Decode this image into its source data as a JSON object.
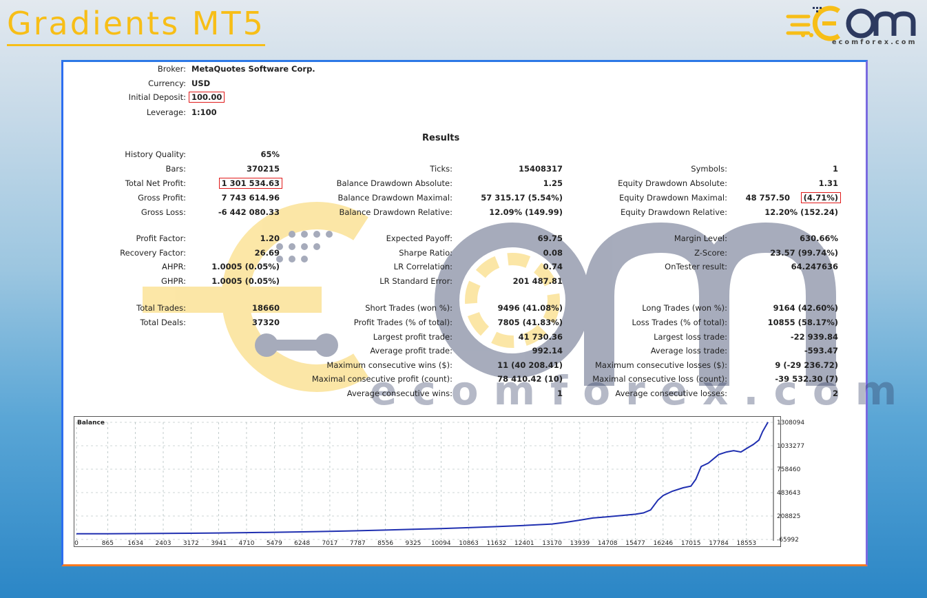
{
  "page_title": "Gradients MT5",
  "logo": {
    "brand": "ECOM",
    "site": "ecomforex.com",
    "color": "#f7be17"
  },
  "watermark": {
    "text": "ecomforex.com"
  },
  "header_info": [
    {
      "label": "Broker:",
      "value": "MetaQuotes Software Corp."
    },
    {
      "label": "Currency:",
      "value": "USD"
    },
    {
      "label": "Initial Deposit:",
      "value": "100.00"
    },
    {
      "label": "Leverage:",
      "value": "1:100"
    }
  ],
  "results_title": "Results",
  "col1": [
    {
      "label": "History Quality:",
      "value": "65%"
    },
    {
      "label": "Bars:",
      "value": "370215"
    },
    {
      "label": "Total Net Profit:",
      "value": "1 301 534.63"
    },
    {
      "label": "Gross Profit:",
      "value": "7 743 614.96"
    },
    {
      "label": "Gross Loss:",
      "value": "-6 442 080.33"
    },
    {
      "label": "Profit Factor:",
      "value": "1.20"
    },
    {
      "label": "Recovery Factor:",
      "value": "26.69"
    },
    {
      "label": "AHPR:",
      "value": "1.0005 (0.05%)"
    },
    {
      "label": "GHPR:",
      "value": "1.0005 (0.05%)"
    },
    {
      "label": "Total Trades:",
      "value": "18660"
    },
    {
      "label": "Total Deals:",
      "value": "37320"
    }
  ],
  "col2": [
    {
      "label": "Ticks:",
      "value": "15408317"
    },
    {
      "label": "Balance Drawdown Absolute:",
      "value": "1.25"
    },
    {
      "label": "Balance Drawdown Maximal:",
      "value": "57 315.17 (5.54%)"
    },
    {
      "label": "Balance Drawdown Relative:",
      "value": "12.09% (149.99)"
    },
    {
      "label": "Expected Payoff:",
      "value": "69.75"
    },
    {
      "label": "Sharpe Ratio:",
      "value": "0.08"
    },
    {
      "label": "LR Correlation:",
      "value": "0.74"
    },
    {
      "label": "LR Standard Error:",
      "value": "201 487.81"
    },
    {
      "label": "Short Trades (won %):",
      "value": "9496 (41.08%)"
    },
    {
      "label": "Profit Trades (% of total):",
      "value": "7805 (41.83%)"
    },
    {
      "label": "Largest profit trade:",
      "value": "41 730.36"
    },
    {
      "label": "Average profit trade:",
      "value": "992.14"
    },
    {
      "label": "Maximum consecutive wins ($):",
      "value": "11 (40 208.41)"
    },
    {
      "label": "Maximal consecutive profit (count):",
      "value": "78 410.42 (10)"
    },
    {
      "label": "Average consecutive wins:",
      "value": "1"
    }
  ],
  "col3": [
    {
      "label": "Symbols:",
      "value": "1"
    },
    {
      "label": "Equity Drawdown Absolute:",
      "value": "1.31"
    },
    {
      "label": "Equity Drawdown Maximal:",
      "value": "48 757.50",
      "value2": "(4.71%)"
    },
    {
      "label": "Equity Drawdown Relative:",
      "value": "12.20% (152.24)"
    },
    {
      "label": "Margin Level:",
      "value": "630.66%"
    },
    {
      "label": "Z-Score:",
      "value": "23.57 (99.74%)"
    },
    {
      "label": "OnTester result:",
      "value": "64.247636"
    },
    {
      "label": "Long Trades (won %):",
      "value": "9164 (42.60%)"
    },
    {
      "label": "Loss Trades (% of total):",
      "value": "10855 (58.17%)"
    },
    {
      "label": "Largest loss trade:",
      "value": "-22 939.84"
    },
    {
      "label": "Average loss trade:",
      "value": "-593.47"
    },
    {
      "label": "Maximum consecutive losses ($):",
      "value": "9 (-29 236.72)"
    },
    {
      "label": "Maximal consecutive loss (count):",
      "value": "-39 532.30 (7)"
    },
    {
      "label": "Average consecutive losses:",
      "value": "2"
    }
  ],
  "highlight_color": "#e01818",
  "chart_data": {
    "type": "line",
    "title": "Balance",
    "x_ticks": [
      "0",
      "865",
      "1634",
      "2403",
      "3172",
      "3941",
      "4710",
      "5479",
      "6248",
      "7017",
      "7787",
      "8556",
      "9325",
      "10094",
      "10863",
      "11632",
      "12401",
      "13170",
      "13939",
      "14708",
      "15477",
      "16246",
      "17015",
      "17784",
      "18553"
    ],
    "y_ticks": [
      "1308094",
      "1033277",
      "758460",
      "483643",
      "208825",
      "-65992"
    ],
    "ylim": [
      -65992,
      1308094
    ],
    "xlim": [
      0,
      19300
    ],
    "grid": true,
    "series": [
      {
        "color": "#1f2fb0",
        "x": [
          0,
          865,
          1634,
          2403,
          3172,
          3941,
          4710,
          5479,
          6248,
          7017,
          7787,
          8556,
          9325,
          10094,
          10863,
          11632,
          12401,
          13170,
          13550,
          13939,
          14300,
          14708,
          15100,
          15477,
          15700,
          15900,
          16100,
          16246,
          16500,
          16800,
          17015,
          17150,
          17300,
          17500,
          17784,
          18000,
          18200,
          18400,
          18553,
          18750,
          18900,
          19000,
          19150
        ],
        "values": [
          100,
          800,
          2500,
          4500,
          7000,
          10000,
          14000,
          18000,
          23000,
          29000,
          36000,
          44000,
          53000,
          62000,
          72000,
          84000,
          98000,
          115000,
          135000,
          160000,
          185000,
          200000,
          215000,
          230000,
          245000,
          280000,
          395000,
          450000,
          500000,
          540000,
          560000,
          640000,
          790000,
          830000,
          930000,
          960000,
          975000,
          960000,
          1000000,
          1050000,
          1100000,
          1200000,
          1310000
        ]
      }
    ]
  }
}
